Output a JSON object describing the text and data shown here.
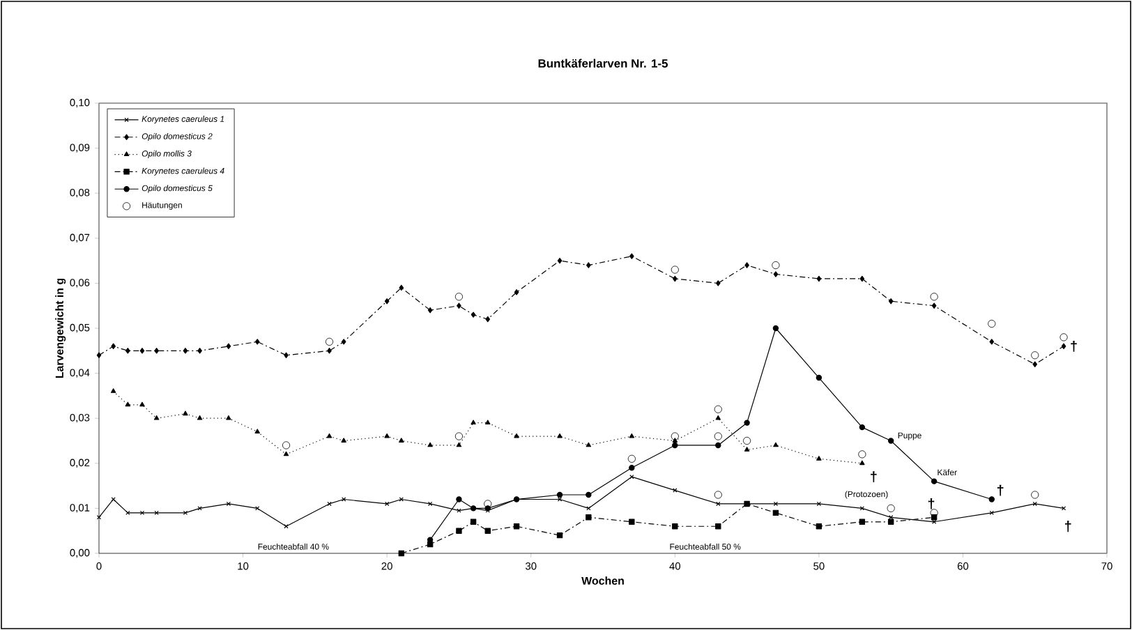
{
  "chart_data": {
    "type": "line",
    "title": "Buntkäferlarven Nr. 1-5",
    "xlabel": "Wochen",
    "ylabel": "Larvengewicht in g",
    "xlim": [
      0,
      70
    ],
    "xticks": [
      0,
      10,
      20,
      30,
      40,
      50,
      60,
      70
    ],
    "ylim": [
      0,
      0.1
    ],
    "yticks": [
      {
        "value": 0,
        "label": "0,00"
      },
      {
        "value": 0.01,
        "label": "0,01"
      },
      {
        "value": 0.02,
        "label": "0,02"
      },
      {
        "value": 0.03,
        "label": "0,03"
      },
      {
        "value": 0.04,
        "label": "0,04"
      },
      {
        "value": 0.05,
        "label": "0,05"
      },
      {
        "value": 0.06,
        "label": "0,06"
      },
      {
        "value": 0.07,
        "label": "0,07"
      },
      {
        "value": 0.08,
        "label": "0,08"
      },
      {
        "value": 0.09,
        "label": "0,09"
      },
      {
        "value": 0.1,
        "label": "0,10"
      }
    ],
    "legend": "top left",
    "series": [
      {
        "name": "Korynetes caeruleus 1",
        "color": "#000000",
        "marker": "cross",
        "line_style": "solid",
        "x": [
          0,
          1,
          2,
          3,
          4,
          6,
          7,
          9,
          11,
          13,
          16,
          17,
          20,
          21,
          23,
          25,
          26,
          27,
          29,
          32,
          34,
          37,
          40,
          43,
          45,
          47,
          50,
          53,
          55,
          58,
          62,
          65,
          67
        ],
        "values": [
          0.008,
          0.012,
          0.009,
          0.009,
          0.009,
          0.009,
          0.01,
          0.011,
          0.01,
          0.006,
          0.011,
          0.012,
          0.011,
          0.012,
          0.011,
          0.0095,
          0.01,
          0.0095,
          0.012,
          0.012,
          0.01,
          0.017,
          0.014,
          0.011,
          0.011,
          0.011,
          0.011,
          0.01,
          0.008,
          0.007,
          0.009,
          0.011,
          0.01
        ]
      },
      {
        "name": "Opilo domesticus 2",
        "color": "#000000",
        "marker": "diamond",
        "line_style": "dashdot",
        "x": [
          0,
          1,
          2,
          3,
          4,
          6,
          7,
          9,
          11,
          13,
          16,
          17,
          20,
          21,
          23,
          25,
          26,
          27,
          29,
          32,
          34,
          37,
          40,
          43,
          45,
          47,
          50,
          53,
          55,
          58,
          62,
          65,
          67
        ],
        "values": [
          0.044,
          0.046,
          0.045,
          0.045,
          0.045,
          0.045,
          0.045,
          0.046,
          0.047,
          0.044,
          0.045,
          0.047,
          0.056,
          0.059,
          0.054,
          0.055,
          0.053,
          0.052,
          0.058,
          0.065,
          0.064,
          0.066,
          0.061,
          0.06,
          0.064,
          0.062,
          0.061,
          0.061,
          0.056,
          0.055,
          0.047,
          0.042,
          0.046
        ]
      },
      {
        "name": "Opilo mollis 3",
        "color": "#000000",
        "marker": "triangle",
        "line_style": "dotted",
        "x": [
          1,
          2,
          3,
          4,
          6,
          7,
          9,
          11,
          13,
          16,
          17,
          20,
          21,
          23,
          25,
          26,
          27,
          29,
          32,
          34,
          37,
          40,
          43,
          45,
          47,
          50,
          53
        ],
        "values": [
          0.036,
          0.033,
          0.033,
          0.03,
          0.031,
          0.03,
          0.03,
          0.027,
          0.022,
          0.026,
          0.025,
          0.026,
          0.025,
          0.024,
          0.024,
          0.029,
          0.029,
          0.026,
          0.026,
          0.024,
          0.026,
          0.025,
          0.03,
          0.023,
          0.024,
          0.021,
          0.02
        ]
      },
      {
        "name": "Korynetes caeruleus 4",
        "color": "#000000",
        "marker": "square",
        "line_style": "dashdot",
        "x": [
          21,
          23,
          25,
          26,
          27,
          29,
          32,
          34,
          37,
          40,
          43,
          45,
          47,
          50,
          53,
          55,
          58
        ],
        "values": [
          0.0,
          0.002,
          0.005,
          0.007,
          0.005,
          0.006,
          0.004,
          0.008,
          0.007,
          0.006,
          0.006,
          0.011,
          0.009,
          0.006,
          0.007,
          0.007,
          0.008
        ]
      },
      {
        "name": "Opilo domesticus 5",
        "color": "#000000",
        "marker": "circle",
        "line_style": "solid",
        "x": [
          23,
          25,
          26,
          27,
          29,
          32,
          34,
          37,
          40,
          43,
          45,
          47,
          50,
          53,
          55,
          58,
          62
        ],
        "values": [
          0.003,
          0.012,
          0.01,
          0.01,
          0.012,
          0.013,
          0.013,
          0.019,
          0.024,
          0.024,
          0.029,
          0.05,
          0.039,
          0.028,
          0.025,
          0.016,
          0.012
        ]
      },
      {
        "name": "Häutungen",
        "type": "scatter",
        "color": "#000000",
        "marker": "circle",
        "x": [
          13,
          16,
          25,
          40,
          47,
          58,
          62,
          65,
          67,
          25,
          43,
          40,
          43,
          45,
          53,
          37,
          27,
          43,
          55,
          58,
          65
        ],
        "values": [
          0.024,
          0.047,
          0.057,
          0.063,
          0.064,
          0.057,
          0.051,
          0.044,
          0.048,
          0.026,
          0.032,
          0.026,
          0.026,
          0.025,
          0.022,
          0.021,
          0.011,
          0.013,
          0.01,
          0.009,
          0.013
        ]
      }
    ],
    "annotations": [
      "Feuchteabfall 40 %",
      "Feuchteabfall 50 %",
      "Puppe",
      "Käfer",
      "(Protozoen)",
      "†",
      "†",
      "†",
      "†",
      "†"
    ]
  }
}
